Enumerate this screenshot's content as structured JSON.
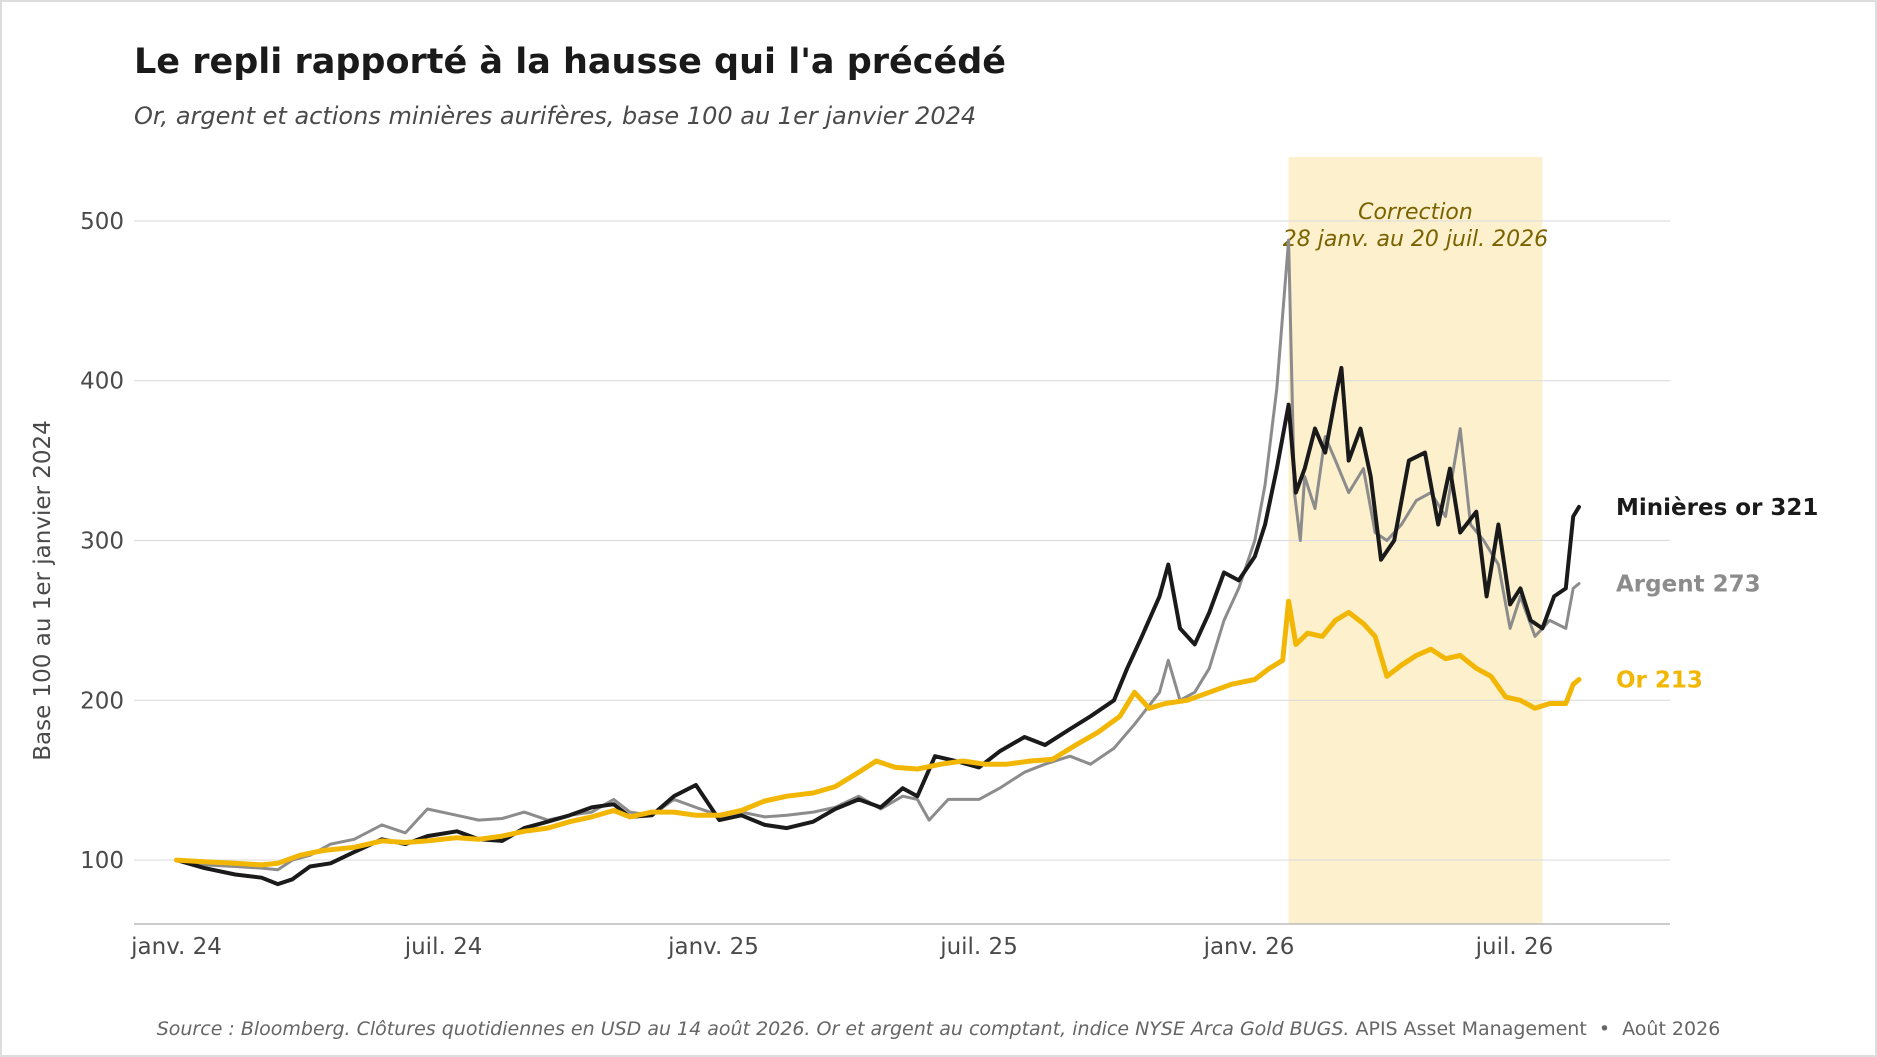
{
  "title": "Le repli rapporté à la hausse qui l'a précédé",
  "subtitle": "Or, argent et actions minières aurifères, base 100 au 1er janvier 2024",
  "footer": {
    "source": "Source : Bloomberg. Clôtures quotidiennes en USD au 14 août 2026. Or et argent au comptant, indice NYSE Arca Gold BUGS.",
    "publisher": "APIS Asset Management",
    "separator": "•",
    "date": "Août 2026"
  },
  "colors": {
    "mining": "#1a1a1a",
    "silver": "#8c8c8c",
    "gold": "#f2b705",
    "correction_fill": "#fdf0cc",
    "correction_text": "#7a6200",
    "grid": "#dddddd",
    "axis_text": "#4a4a4a"
  },
  "chart_data": {
    "type": "line",
    "ylabel": "Base 100 au 1er janvier 2024",
    "xlabel": "",
    "ylim": [
      60,
      540
    ],
    "xlim": [
      "2023-12-03",
      "2026-10-15"
    ],
    "grid": true,
    "y_ticks": [
      100,
      200,
      300,
      400,
      500
    ],
    "x_ticks": [
      {
        "date": "2024-01-01",
        "label": "janv. 24"
      },
      {
        "date": "2024-07-01",
        "label": "juil. 24"
      },
      {
        "date": "2025-01-01",
        "label": "janv. 25"
      },
      {
        "date": "2025-07-01",
        "label": "juil. 25"
      },
      {
        "date": "2026-01-01",
        "label": "janv. 26"
      },
      {
        "date": "2026-07-01",
        "label": "juil. 26"
      }
    ],
    "highlight": {
      "start": "2026-01-28",
      "end": "2026-07-20",
      "label_line1": "Correction",
      "label_line2": "28 janv. au 20 juil. 2026"
    },
    "series": [
      {
        "key": "mining",
        "name": "Minières or",
        "last_value_label": "321",
        "points": [
          [
            "2024-01-01",
            100
          ],
          [
            "2024-01-20",
            95
          ],
          [
            "2024-02-10",
            91
          ],
          [
            "2024-02-28",
            89
          ],
          [
            "2024-03-10",
            85
          ],
          [
            "2024-03-20",
            88
          ],
          [
            "2024-04-01",
            96
          ],
          [
            "2024-04-15",
            98
          ],
          [
            "2024-05-01",
            105
          ],
          [
            "2024-05-20",
            113
          ],
          [
            "2024-06-05",
            110
          ],
          [
            "2024-06-20",
            115
          ],
          [
            "2024-07-10",
            118
          ],
          [
            "2024-07-25",
            113
          ],
          [
            "2024-08-10",
            112
          ],
          [
            "2024-08-25",
            120
          ],
          [
            "2024-09-10",
            124
          ],
          [
            "2024-09-25",
            128
          ],
          [
            "2024-10-10",
            133
          ],
          [
            "2024-10-25",
            135
          ],
          [
            "2024-11-05",
            127
          ],
          [
            "2024-11-20",
            128
          ],
          [
            "2024-12-05",
            140
          ],
          [
            "2024-12-20",
            147
          ],
          [
            "2025-01-05",
            125
          ],
          [
            "2025-01-20",
            128
          ],
          [
            "2025-02-05",
            122
          ],
          [
            "2025-02-20",
            120
          ],
          [
            "2025-03-10",
            124
          ],
          [
            "2025-03-25",
            132
          ],
          [
            "2025-04-10",
            138
          ],
          [
            "2025-04-25",
            133
          ],
          [
            "2025-05-10",
            145
          ],
          [
            "2025-05-20",
            140
          ],
          [
            "2025-06-01",
            165
          ],
          [
            "2025-06-15",
            162
          ],
          [
            "2025-07-01",
            158
          ],
          [
            "2025-07-15",
            168
          ],
          [
            "2025-08-01",
            177
          ],
          [
            "2025-08-15",
            172
          ],
          [
            "2025-09-01",
            182
          ],
          [
            "2025-09-15",
            190
          ],
          [
            "2025-10-01",
            200
          ],
          [
            "2025-10-10",
            220
          ],
          [
            "2025-10-20",
            240
          ],
          [
            "2025-11-01",
            265
          ],
          [
            "2025-11-07",
            285
          ],
          [
            "2025-11-15",
            245
          ],
          [
            "2025-11-25",
            235
          ],
          [
            "2025-12-05",
            255
          ],
          [
            "2025-12-15",
            280
          ],
          [
            "2025-12-25",
            275
          ],
          [
            "2026-01-05",
            290
          ],
          [
            "2026-01-12",
            310
          ],
          [
            "2026-01-20",
            345
          ],
          [
            "2026-01-28",
            385
          ],
          [
            "2026-02-02",
            330
          ],
          [
            "2026-02-08",
            345
          ],
          [
            "2026-02-15",
            370
          ],
          [
            "2026-02-22",
            355
          ],
          [
            "2026-03-01",
            390
          ],
          [
            "2026-03-05",
            408
          ],
          [
            "2026-03-10",
            350
          ],
          [
            "2026-03-18",
            370
          ],
          [
            "2026-03-25",
            340
          ],
          [
            "2026-04-01",
            288
          ],
          [
            "2026-04-10",
            300
          ],
          [
            "2026-04-20",
            350
          ],
          [
            "2026-05-01",
            355
          ],
          [
            "2026-05-10",
            310
          ],
          [
            "2026-05-18",
            345
          ],
          [
            "2026-05-25",
            305
          ],
          [
            "2026-06-05",
            318
          ],
          [
            "2026-06-12",
            265
          ],
          [
            "2026-06-20",
            310
          ],
          [
            "2026-06-28",
            260
          ],
          [
            "2026-07-05",
            270
          ],
          [
            "2026-07-12",
            250
          ],
          [
            "2026-07-20",
            245
          ],
          [
            "2026-07-28",
            265
          ],
          [
            "2026-08-05",
            270
          ],
          [
            "2026-08-10",
            315
          ],
          [
            "2026-08-14",
            321
          ]
        ]
      },
      {
        "key": "silver",
        "name": "Argent",
        "last_value_label": "273",
        "points": [
          [
            "2024-01-01",
            100
          ],
          [
            "2024-01-20",
            97
          ],
          [
            "2024-02-10",
            96
          ],
          [
            "2024-02-28",
            95
          ],
          [
            "2024-03-10",
            94
          ],
          [
            "2024-03-20",
            100
          ],
          [
            "2024-04-01",
            103
          ],
          [
            "2024-04-15",
            110
          ],
          [
            "2024-05-01",
            113
          ],
          [
            "2024-05-20",
            122
          ],
          [
            "2024-06-05",
            117
          ],
          [
            "2024-06-20",
            132
          ],
          [
            "2024-07-10",
            128
          ],
          [
            "2024-07-25",
            125
          ],
          [
            "2024-08-10",
            126
          ],
          [
            "2024-08-25",
            130
          ],
          [
            "2024-09-10",
            125
          ],
          [
            "2024-09-25",
            128
          ],
          [
            "2024-10-10",
            130
          ],
          [
            "2024-10-25",
            138
          ],
          [
            "2024-11-05",
            130
          ],
          [
            "2024-11-20",
            128
          ],
          [
            "2024-12-05",
            138
          ],
          [
            "2024-12-20",
            133
          ],
          [
            "2025-01-05",
            128
          ],
          [
            "2025-01-20",
            130
          ],
          [
            "2025-02-05",
            127
          ],
          [
            "2025-02-20",
            128
          ],
          [
            "2025-03-10",
            130
          ],
          [
            "2025-03-25",
            133
          ],
          [
            "2025-04-10",
            140
          ],
          [
            "2025-04-25",
            132
          ],
          [
            "2025-05-10",
            140
          ],
          [
            "2025-05-20",
            138
          ],
          [
            "2025-05-28",
            125
          ],
          [
            "2025-06-10",
            138
          ],
          [
            "2025-07-01",
            138
          ],
          [
            "2025-07-15",
            145
          ],
          [
            "2025-08-01",
            155
          ],
          [
            "2025-08-15",
            160
          ],
          [
            "2025-09-01",
            165
          ],
          [
            "2025-09-15",
            160
          ],
          [
            "2025-10-01",
            170
          ],
          [
            "2025-10-15",
            185
          ],
          [
            "2025-11-01",
            205
          ],
          [
            "2025-11-07",
            225
          ],
          [
            "2025-11-15",
            200
          ],
          [
            "2025-11-25",
            205
          ],
          [
            "2025-12-05",
            220
          ],
          [
            "2025-12-15",
            250
          ],
          [
            "2025-12-25",
            270
          ],
          [
            "2026-01-05",
            300
          ],
          [
            "2026-01-12",
            335
          ],
          [
            "2026-01-20",
            395
          ],
          [
            "2026-01-28",
            488
          ],
          [
            "2026-02-01",
            330
          ],
          [
            "2026-02-05",
            300
          ],
          [
            "2026-02-08",
            340
          ],
          [
            "2026-02-15",
            320
          ],
          [
            "2026-02-22",
            365
          ],
          [
            "2026-03-01",
            350
          ],
          [
            "2026-03-10",
            330
          ],
          [
            "2026-03-20",
            345
          ],
          [
            "2026-03-28",
            305
          ],
          [
            "2026-04-05",
            300
          ],
          [
            "2026-04-15",
            310
          ],
          [
            "2026-04-25",
            325
          ],
          [
            "2026-05-05",
            330
          ],
          [
            "2026-05-15",
            315
          ],
          [
            "2026-05-25",
            370
          ],
          [
            "2026-06-01",
            310
          ],
          [
            "2026-06-10",
            300
          ],
          [
            "2026-06-20",
            285
          ],
          [
            "2026-06-28",
            245
          ],
          [
            "2026-07-05",
            265
          ],
          [
            "2026-07-15",
            240
          ],
          [
            "2026-07-25",
            250
          ],
          [
            "2026-08-05",
            245
          ],
          [
            "2026-08-10",
            270
          ],
          [
            "2026-08-14",
            273
          ]
        ]
      },
      {
        "key": "gold",
        "name": "Or",
        "last_value_label": "213",
        "points": [
          [
            "2024-01-01",
            100
          ],
          [
            "2024-01-20",
            99
          ],
          [
            "2024-02-10",
            98
          ],
          [
            "2024-02-28",
            97
          ],
          [
            "2024-03-10",
            98
          ],
          [
            "2024-03-25",
            103
          ],
          [
            "2024-04-10",
            106
          ],
          [
            "2024-05-01",
            108
          ],
          [
            "2024-05-20",
            112
          ],
          [
            "2024-06-05",
            111
          ],
          [
            "2024-06-20",
            112
          ],
          [
            "2024-07-10",
            114
          ],
          [
            "2024-07-25",
            113
          ],
          [
            "2024-08-10",
            115
          ],
          [
            "2024-08-25",
            118
          ],
          [
            "2024-09-10",
            120
          ],
          [
            "2024-09-25",
            124
          ],
          [
            "2024-10-10",
            127
          ],
          [
            "2024-10-25",
            131
          ],
          [
            "2024-11-05",
            127
          ],
          [
            "2024-11-20",
            130
          ],
          [
            "2024-12-05",
            130
          ],
          [
            "2024-12-20",
            128
          ],
          [
            "2025-01-05",
            128
          ],
          [
            "2025-01-20",
            131
          ],
          [
            "2025-02-05",
            137
          ],
          [
            "2025-02-20",
            140
          ],
          [
            "2025-03-10",
            142
          ],
          [
            "2025-03-25",
            146
          ],
          [
            "2025-04-10",
            155
          ],
          [
            "2025-04-22",
            162
          ],
          [
            "2025-05-05",
            158
          ],
          [
            "2025-05-20",
            157
          ],
          [
            "2025-06-05",
            160
          ],
          [
            "2025-06-20",
            162
          ],
          [
            "2025-07-05",
            160
          ],
          [
            "2025-07-20",
            160
          ],
          [
            "2025-08-05",
            162
          ],
          [
            "2025-08-20",
            163
          ],
          [
            "2025-09-05",
            172
          ],
          [
            "2025-09-20",
            180
          ],
          [
            "2025-10-05",
            190
          ],
          [
            "2025-10-15",
            205
          ],
          [
            "2025-10-25",
            195
          ],
          [
            "2025-11-05",
            198
          ],
          [
            "2025-11-20",
            200
          ],
          [
            "2025-12-05",
            205
          ],
          [
            "2025-12-20",
            210
          ],
          [
            "2026-01-05",
            213
          ],
          [
            "2026-01-15",
            220
          ],
          [
            "2026-01-24",
            225
          ],
          [
            "2026-01-28",
            262
          ],
          [
            "2026-02-02",
            235
          ],
          [
            "2026-02-10",
            242
          ],
          [
            "2026-02-20",
            240
          ],
          [
            "2026-03-01",
            250
          ],
          [
            "2026-03-10",
            255
          ],
          [
            "2026-03-20",
            248
          ],
          [
            "2026-03-28",
            240
          ],
          [
            "2026-04-05",
            215
          ],
          [
            "2026-04-15",
            222
          ],
          [
            "2026-04-25",
            228
          ],
          [
            "2026-05-05",
            232
          ],
          [
            "2026-05-15",
            226
          ],
          [
            "2026-05-25",
            228
          ],
          [
            "2026-06-05",
            220
          ],
          [
            "2026-06-15",
            215
          ],
          [
            "2026-06-25",
            202
          ],
          [
            "2026-07-05",
            200
          ],
          [
            "2026-07-15",
            195
          ],
          [
            "2026-07-25",
            198
          ],
          [
            "2026-08-05",
            198
          ],
          [
            "2026-08-10",
            210
          ],
          [
            "2026-08-14",
            213
          ]
        ]
      }
    ]
  }
}
